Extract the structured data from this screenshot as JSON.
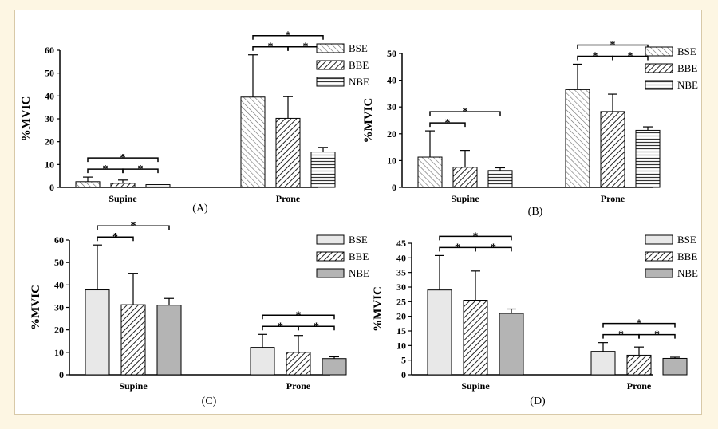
{
  "chart_data": [
    {
      "type": "bar",
      "panel_label": "(A)",
      "ylabel": "%MVIC",
      "ylim": [
        0,
        60
      ],
      "yticks": [
        0,
        10,
        20,
        30,
        40,
        50,
        60
      ],
      "categories": [
        "Supine",
        "Prone"
      ],
      "series": [
        {
          "name": "BSE",
          "values": [
            2.5,
            39.5
          ],
          "errors": [
            2.0,
            18.5
          ]
        },
        {
          "name": "BBE",
          "values": [
            1.8,
            30.2
          ],
          "errors": [
            1.4,
            9.5
          ]
        },
        {
          "name": "NBE",
          "values": [
            1.2,
            15.5
          ],
          "errors": [
            0.0,
            2.0
          ]
        }
      ],
      "significance": [
        {
          "category": 0,
          "from": 0,
          "to": 2,
          "level": 1,
          "label": "*"
        },
        {
          "category": 0,
          "from": 0,
          "to": 1,
          "level": 0,
          "label": "*"
        },
        {
          "category": 0,
          "from": 1,
          "to": 2,
          "level": 0,
          "label": "*"
        },
        {
          "category": 1,
          "from": 0,
          "to": 2,
          "level": 1,
          "label": "*"
        },
        {
          "category": 1,
          "from": 0,
          "to": 1,
          "level": 0,
          "label": "*"
        },
        {
          "category": 1,
          "from": 1,
          "to": 2,
          "level": 0,
          "label": "*"
        }
      ],
      "legend": "top-right"
    },
    {
      "type": "bar",
      "panel_label": "(B)",
      "ylabel": "%MVIC",
      "ylim": [
        0,
        50
      ],
      "yticks": [
        0,
        10,
        20,
        30,
        40,
        50
      ],
      "categories": [
        "Supine",
        "Prone"
      ],
      "series": [
        {
          "name": "BSE",
          "values": [
            11.3,
            36.5
          ],
          "errors": [
            9.8,
            9.5
          ]
        },
        {
          "name": "BBE",
          "values": [
            7.5,
            28.3
          ],
          "errors": [
            6.3,
            6.5
          ]
        },
        {
          "name": "NBE",
          "values": [
            6.3,
            21.3
          ],
          "errors": [
            1.0,
            1.3
          ]
        }
      ],
      "significance": [
        {
          "category": 0,
          "from": 0,
          "to": 2,
          "level": 1,
          "label": "*"
        },
        {
          "category": 0,
          "from": 0,
          "to": 1,
          "level": 0,
          "label": "*"
        },
        {
          "category": 1,
          "from": 0,
          "to": 2,
          "level": 1,
          "label": "*"
        },
        {
          "category": 1,
          "from": 0,
          "to": 1,
          "level": 0,
          "label": "*"
        },
        {
          "category": 1,
          "from": 1,
          "to": 2,
          "level": 0,
          "label": "*"
        }
      ],
      "legend": "top-right"
    },
    {
      "type": "bar",
      "panel_label": "(C)",
      "ylabel": "%MVIC",
      "ylim": [
        0,
        60
      ],
      "yticks": [
        0,
        10,
        20,
        30,
        40,
        50,
        60
      ],
      "categories": [
        "Supine",
        "Prone"
      ],
      "series": [
        {
          "name": "BSE",
          "values": [
            37.8,
            12.2
          ],
          "errors": [
            20.0,
            5.8
          ]
        },
        {
          "name": "BBE",
          "values": [
            31.2,
            10.0
          ],
          "errors": [
            14.0,
            7.5
          ]
        },
        {
          "name": "NBE",
          "values": [
            31.0,
            7.2
          ],
          "errors": [
            3.0,
            0.8
          ]
        }
      ],
      "significance": [
        {
          "category": 0,
          "from": 0,
          "to": 2,
          "level": 1,
          "label": "*"
        },
        {
          "category": 0,
          "from": 0,
          "to": 1,
          "level": 0,
          "label": "*"
        },
        {
          "category": 1,
          "from": 0,
          "to": 2,
          "level": 1,
          "label": "*"
        },
        {
          "category": 1,
          "from": 0,
          "to": 1,
          "level": 0,
          "label": "*"
        },
        {
          "category": 1,
          "from": 1,
          "to": 2,
          "level": 0,
          "label": "*"
        }
      ],
      "legend": "top-right"
    },
    {
      "type": "bar",
      "panel_label": "(D)",
      "ylabel": "%MVIC",
      "ylim": [
        0,
        45
      ],
      "yticks": [
        0,
        5,
        10,
        15,
        20,
        25,
        30,
        35,
        40,
        45
      ],
      "categories": [
        "Supine",
        "Prone"
      ],
      "series": [
        {
          "name": "BSE",
          "values": [
            29.0,
            8.0
          ],
          "errors": [
            11.8,
            3.0
          ]
        },
        {
          "name": "BBE",
          "values": [
            25.5,
            6.7
          ],
          "errors": [
            10.0,
            2.8
          ]
        },
        {
          "name": "NBE",
          "values": [
            21.0,
            5.6
          ],
          "errors": [
            1.5,
            0.4
          ]
        }
      ],
      "significance": [
        {
          "category": 0,
          "from": 0,
          "to": 2,
          "level": 1,
          "label": "*"
        },
        {
          "category": 0,
          "from": 0,
          "to": 1,
          "level": 0,
          "label": "*"
        },
        {
          "category": 0,
          "from": 1,
          "to": 2,
          "level": 0,
          "label": "*"
        },
        {
          "category": 1,
          "from": 0,
          "to": 2,
          "level": 1,
          "label": "*"
        },
        {
          "category": 1,
          "from": 0,
          "to": 1,
          "level": 0,
          "label": "*"
        },
        {
          "category": 1,
          "from": 1,
          "to": 2,
          "level": 0,
          "label": "*"
        }
      ],
      "legend": "top-right"
    }
  ]
}
